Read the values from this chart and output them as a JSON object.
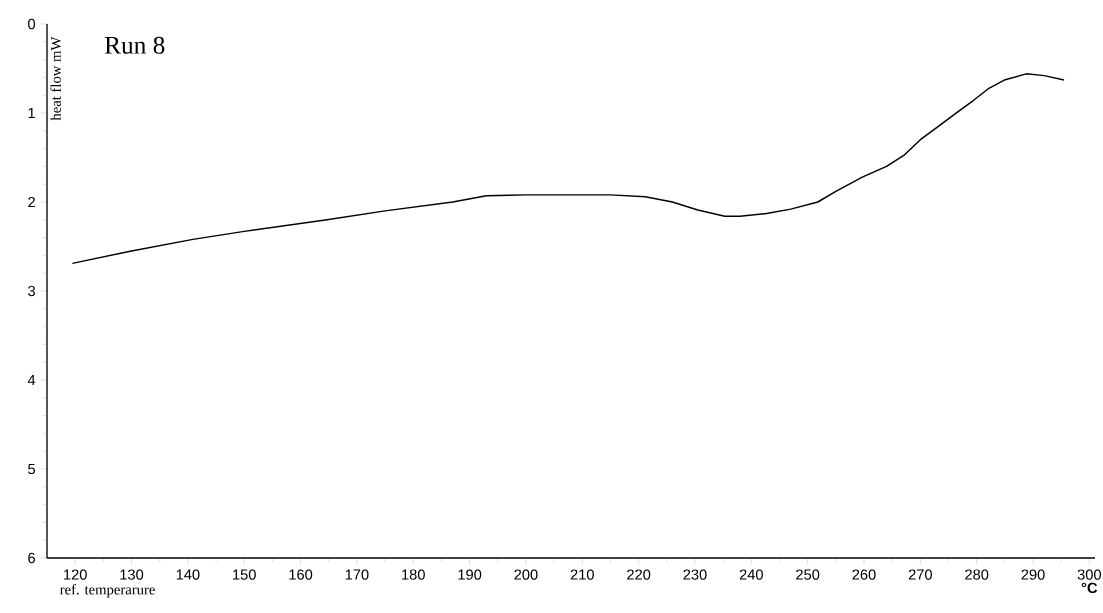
{
  "chart_data": {
    "type": "line",
    "title": "Run 8",
    "xlabel": "ref. temperarure",
    "ylabel": "heat flow mW",
    "annotations": [
      "°C"
    ],
    "x": [
      119.5,
      130,
      140.9,
      150,
      164.7,
      175,
      187,
      193,
      200,
      209.5,
      215,
      221.2,
      226,
      230.5,
      235.3,
      238,
      242.7,
      247,
      251.8,
      255,
      259.7,
      264,
      267.2,
      270,
      273.2,
      277,
      279.4,
      282,
      284.9,
      288.8,
      292,
      295.5
    ],
    "values": [
      2.69,
      2.55,
      2.42,
      2.33,
      2.2,
      2.1,
      2.0,
      1.93,
      1.92,
      1.92,
      1.92,
      1.94,
      2.0,
      2.09,
      2.16,
      2.16,
      2.13,
      2.08,
      2.0,
      1.88,
      1.72,
      1.6,
      1.47,
      1.3,
      1.15,
      0.97,
      0.86,
      0.73,
      0.63,
      0.56,
      0.58,
      0.63
    ],
    "color": "#000000",
    "xlim": [
      115,
      301
    ],
    "ylim": [
      6,
      0
    ],
    "xticks": [
      120,
      130,
      140,
      150,
      160,
      170,
      180,
      190,
      200,
      210,
      220,
      230,
      240,
      250,
      260,
      270,
      280,
      290,
      300
    ],
    "yticks": [
      0,
      1,
      2,
      3,
      4,
      5,
      6
    ]
  }
}
